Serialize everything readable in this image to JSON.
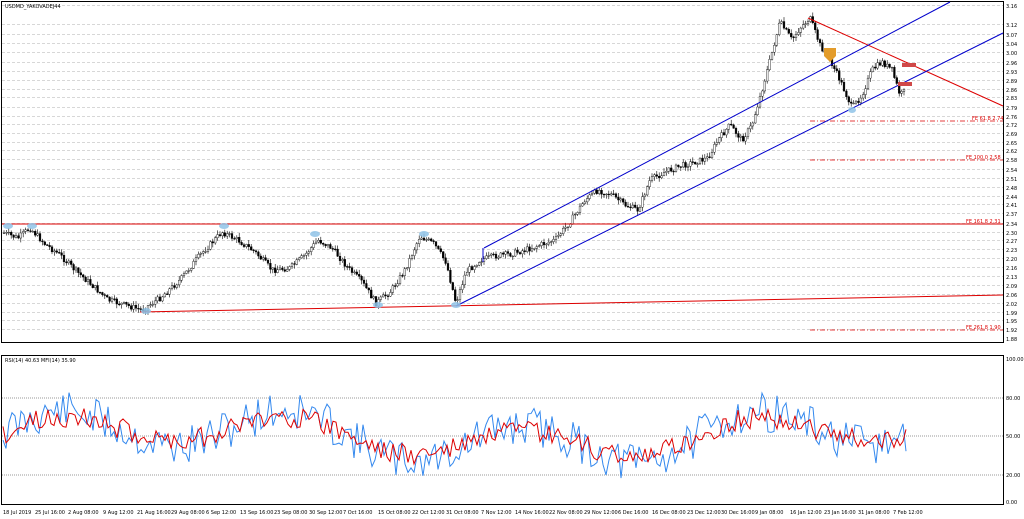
{
  "window": {
    "title": "USDMD_YAKOVADEJ44"
  },
  "indicator": {
    "title": "RSI(14) 40.63 MFI(14) 35.90",
    "levels": [
      "100.00",
      "80.00",
      "50.00",
      "20.00",
      "0.00"
    ]
  },
  "price_axis": {
    "labels": [
      "3.16",
      "3.12",
      "3.07",
      "3.04",
      "3.00",
      "2.96",
      "2.93",
      "2.89",
      "2.86",
      "2.83",
      "2.79",
      "2.76",
      "2.72",
      "2.69",
      "2.65",
      "2.62",
      "2.58",
      "2.54",
      "2.51",
      "2.48",
      "2.44",
      "2.41",
      "2.37",
      "2.34",
      "2.30",
      "2.27",
      "2.23",
      "2.20",
      "2.16",
      "2.13",
      "2.09",
      "2.06",
      "2.02",
      "1.99",
      "1.95",
      "1.92",
      "1.88"
    ]
  },
  "fib_labels": [
    "FE 61.8 2.74",
    "FE 100.0 2.58",
    "FE 161.8 2.31",
    "FE 261.8 1.90"
  ],
  "time_axis": {
    "labels": [
      "18 Jul 2019",
      "25 Jul 16:00",
      "2 Aug 08:00",
      "9 Aug 12:00",
      "21 Aug 16:00",
      "29 Aug 08:00",
      "6 Sep 12:00",
      "13 Sep 16:00",
      "23 Sep 08:00",
      "30 Sep 12:00",
      "7 Oct 16:00",
      "15 Oct 08:00",
      "22 Oct 12:00",
      "31 Oct 08:00",
      "7 Nov 12:00",
      "14 Nov 16:00",
      "22 Nov 08:00",
      "29 Nov 12:00",
      "6 Dec 16:00",
      "16 Dec 08:00",
      "23 Dec 12:00",
      "30 Dec 16:00",
      "9 Jan 08:00",
      "16 Jan 12:00",
      "23 Jan 16:00",
      "31 Jan 08:00",
      "7 Feb 12:00"
    ]
  },
  "colors": {
    "background": "#ffffff",
    "channel": "#0000cc",
    "trendline": "#dd0000",
    "rsi": "#dd0000",
    "mfi": "#3388ee",
    "marker": "#8fc3e8",
    "arrow": "#e39c2b"
  }
}
